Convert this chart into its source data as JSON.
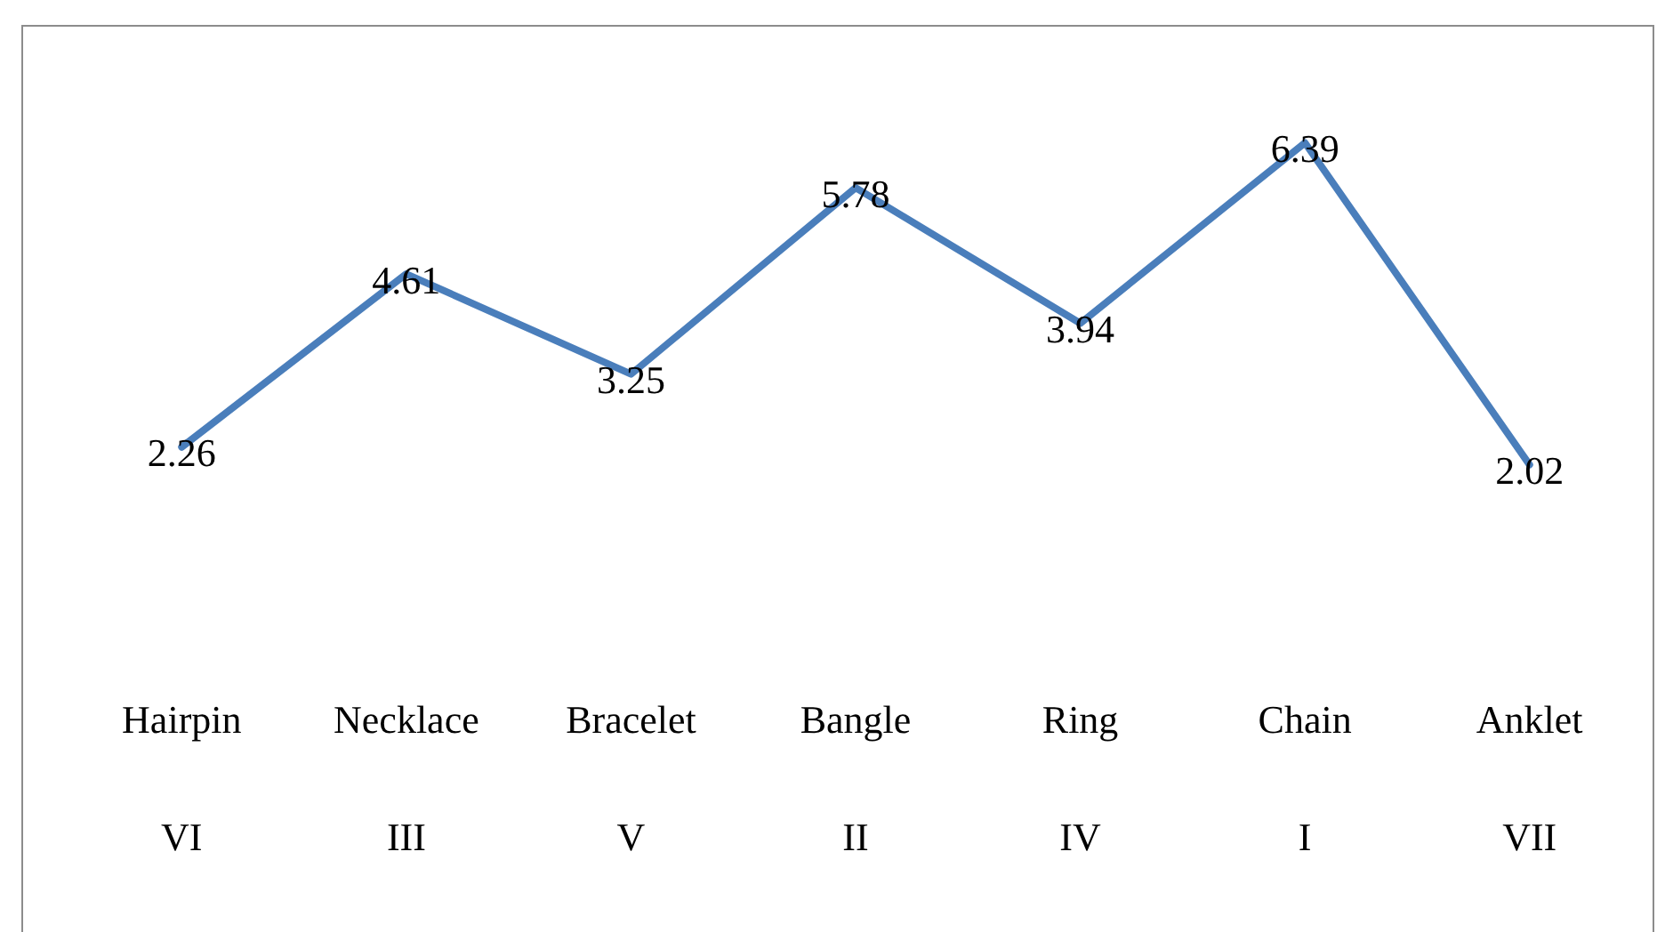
{
  "chart_data": {
    "type": "line",
    "categories": [
      "Hairpin\nVI",
      "Necklace\nIII",
      "Bracelet\nV",
      "Bangle\nII",
      "Ring\nIV",
      "Chain\nI",
      "Anklet\nVII"
    ],
    "values": [
      2.26,
      4.61,
      3.25,
      5.78,
      3.94,
      6.39,
      2.02
    ],
    "color": "#4a7ebb",
    "data_labels": true
  }
}
